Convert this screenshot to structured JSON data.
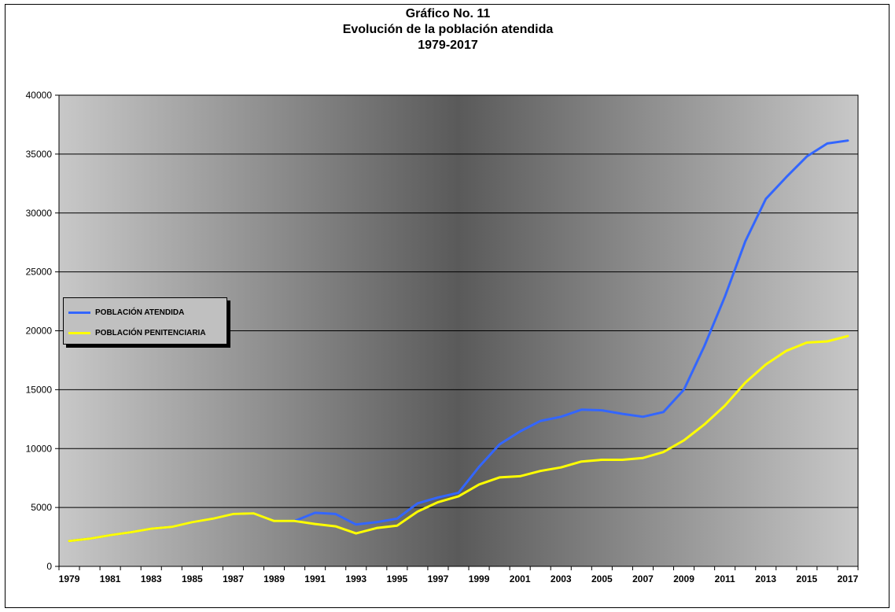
{
  "title_lines": [
    "Gráfico No. 11",
    "Evolución de la población atendida",
    "1979-2017"
  ],
  "chart_data": {
    "type": "line",
    "title": "Gráfico No. 11 Evolución de la población atendida 1979-2017",
    "xlabel": "",
    "ylabel": "",
    "x": [
      1979,
      1980,
      1981,
      1982,
      1983,
      1984,
      1985,
      1986,
      1987,
      1988,
      1989,
      1990,
      1991,
      1992,
      1993,
      1994,
      1995,
      1996,
      1997,
      1998,
      1999,
      2000,
      2001,
      2002,
      2003,
      2004,
      2005,
      2006,
      2007,
      2008,
      2009,
      2010,
      2011,
      2012,
      2013,
      2014,
      2015,
      2016,
      2017
    ],
    "x_tick_labels": [
      "1979",
      "1981",
      "1983",
      "1985",
      "1987",
      "1989",
      "1991",
      "1993",
      "1995",
      "1997",
      "1999",
      "2001",
      "2003",
      "2005",
      "2007",
      "2009",
      "2011",
      "2013",
      "2015",
      "2017"
    ],
    "ylim": [
      0,
      40000
    ],
    "y_ticks": [
      0,
      5000,
      10000,
      15000,
      20000,
      25000,
      30000,
      35000,
      40000
    ],
    "grid": "horizontal",
    "legend_position": "left",
    "series": [
      {
        "name": "POBLACIÓN ATENDIDA",
        "color": "#3366ff",
        "values": [
          2150,
          2350,
          2650,
          2900,
          3200,
          3350,
          3750,
          4050,
          4450,
          4500,
          3850,
          3850,
          4550,
          4450,
          3550,
          3750,
          4050,
          5350,
          5850,
          6250,
          8450,
          10350,
          11450,
          12350,
          12700,
          13300,
          13250,
          12950,
          12700,
          13100,
          15000,
          18700,
          22900,
          27600,
          31200,
          33050,
          34800,
          35900,
          36150
        ]
      },
      {
        "name": "POBLACIÓN PENITENCIARIA",
        "color": "#ffff00",
        "values": [
          2150,
          2350,
          2650,
          2900,
          3200,
          3350,
          3750,
          4050,
          4450,
          4500,
          3850,
          3850,
          3600,
          3400,
          2800,
          3250,
          3450,
          4650,
          5450,
          5950,
          6950,
          7550,
          7650,
          8100,
          8400,
          8900,
          9050,
          9050,
          9200,
          9700,
          10700,
          12050,
          13650,
          15600,
          17150,
          18300,
          19000,
          19100,
          19550
        ]
      }
    ]
  }
}
